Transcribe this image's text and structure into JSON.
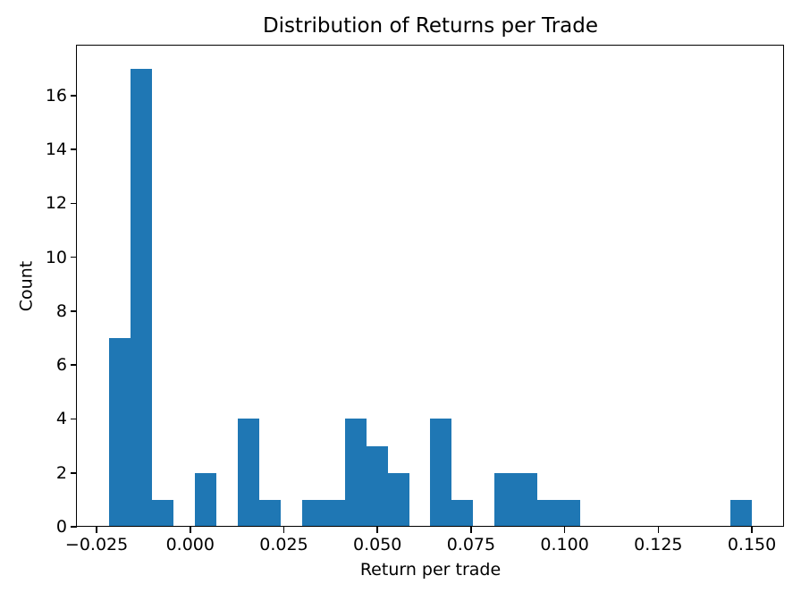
{
  "title": "Distribution of Returns per Trade",
  "xlabel": "Return per trade",
  "ylabel": "Count",
  "chart_data": {
    "type": "bar",
    "subtype": "histogram",
    "title": "Distribution of Returns per Trade",
    "xlabel": "Return per trade",
    "ylabel": "Count",
    "bar_color": "#1f77b4",
    "background_color": "#ffffff",
    "grid": false,
    "legend_position": "none",
    "bin_edges": [
      -0.021687,
      -0.015964,
      -0.010241,
      -0.004518,
      0.001205,
      0.006928,
      0.01265,
      0.018373,
      0.024096,
      0.029819,
      0.035542,
      0.041265,
      0.046988,
      0.052711,
      0.058434,
      0.064156,
      0.069879,
      0.075602,
      0.081325,
      0.087048,
      0.092771,
      0.098494,
      0.104217,
      0.10994,
      0.115663,
      0.121385,
      0.127108,
      0.132831,
      0.138554,
      0.144277,
      0.15
    ],
    "counts": [
      7,
      17,
      1,
      0,
      2,
      0,
      4,
      1,
      0,
      1,
      1,
      4,
      3,
      2,
      0,
      4,
      1,
      0,
      2,
      2,
      1,
      1,
      0,
      0,
      0,
      0,
      0,
      0,
      0,
      1
    ],
    "total_count": 55,
    "xlim": [
      -0.030271,
      0.158584
    ],
    "ylim": [
      0,
      17.85
    ],
    "xticks": {
      "values": [
        -0.025,
        0.0,
        0.025,
        0.05,
        0.075,
        0.1,
        0.125,
        0.15
      ],
      "labels": [
        "−0.025",
        "0.000",
        "0.025",
        "0.050",
        "0.075",
        "0.100",
        "0.125",
        "0.150"
      ]
    },
    "yticks": {
      "values": [
        0,
        2,
        4,
        6,
        8,
        10,
        12,
        14,
        16
      ],
      "labels": [
        "0",
        "2",
        "4",
        "6",
        "8",
        "10",
        "12",
        "14",
        "16"
      ]
    }
  }
}
